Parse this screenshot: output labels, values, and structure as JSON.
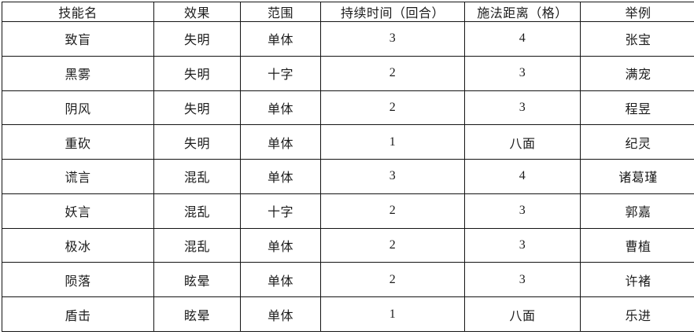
{
  "table": {
    "headers": [
      "技能名",
      "效果",
      "范围",
      "持续时间（回合）",
      "施法距离（格）",
      "举例"
    ],
    "rows": [
      [
        "致盲",
        "失明",
        "单体",
        "3",
        "4",
        "张宝"
      ],
      [
        "黑雾",
        "失明",
        "十字",
        "2",
        "3",
        "满宠"
      ],
      [
        "阴风",
        "失明",
        "单体",
        "2",
        "3",
        "程昱"
      ],
      [
        "重砍",
        "失明",
        "单体",
        "1",
        "八面",
        "纪灵"
      ],
      [
        "谎言",
        "混乱",
        "单体",
        "3",
        "4",
        "诸葛瑾"
      ],
      [
        "妖言",
        "混乱",
        "十字",
        "2",
        "3",
        "郭嘉"
      ],
      [
        "极冰",
        "混乱",
        "单体",
        "2",
        "3",
        "曹植"
      ],
      [
        "陨落",
        "眩晕",
        "单体",
        "2",
        "3",
        "许褚"
      ],
      [
        "盾击",
        "眩晕",
        "单体",
        "1",
        "八面",
        "乐进"
      ]
    ],
    "colors": {
      "grid": "#141414",
      "text": "#1c1c1c",
      "background": "#ffffff"
    }
  }
}
